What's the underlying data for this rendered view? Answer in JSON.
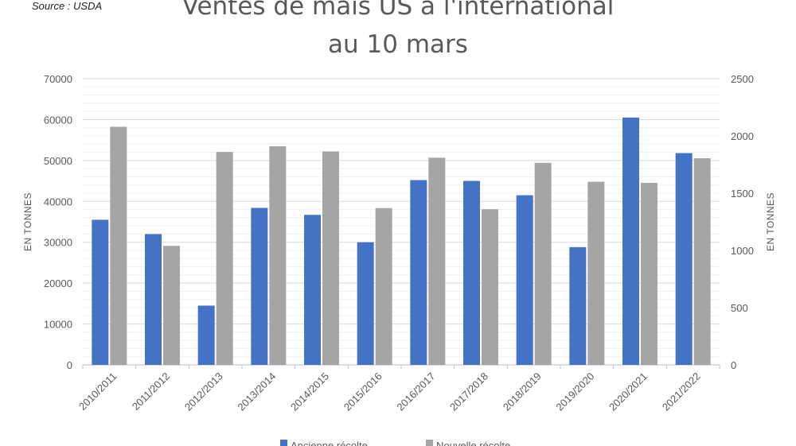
{
  "source": "Source : USDA",
  "chart_data": {
    "type": "bar",
    "title_lines": [
      "Ventes de maïs US à l'international",
      "au 10 mars"
    ],
    "categories": [
      "2010/2011",
      "2011/2012",
      "2012/2013",
      "2013/2014",
      "2014/2015",
      "2015/2016",
      "2016/2017",
      "2017/2018",
      "2018/2019",
      "2019/2020",
      "2020/2021",
      "2021/2022"
    ],
    "series": [
      {
        "name": "Ancienne récolte",
        "axis": "left",
        "color": "#4472C4",
        "values": [
          35500,
          32000,
          14500,
          38400,
          36700,
          30000,
          45200,
          45000,
          41500,
          28800,
          60500,
          51800
        ]
      },
      {
        "name": "Nouvelle récolte",
        "axis": "right",
        "color": "#A5A5A5",
        "values": [
          2080,
          1040,
          1860,
          1910,
          1865,
          1370,
          1810,
          1360,
          1765,
          1600,
          1590,
          1805
        ]
      }
    ],
    "ylabel": "EN TONNES",
    "y2label": "EN TONNES",
    "ylim": [
      0,
      70000
    ],
    "y2lim": [
      0,
      2500
    ],
    "yticks": [
      "0",
      "10000",
      "20000",
      "30000",
      "40000",
      "50000",
      "60000",
      "70000"
    ],
    "y2ticks": [
      "0",
      "500",
      "1000",
      "1500",
      "2000",
      "2500"
    ],
    "grid": true,
    "legend_position": "bottom"
  }
}
